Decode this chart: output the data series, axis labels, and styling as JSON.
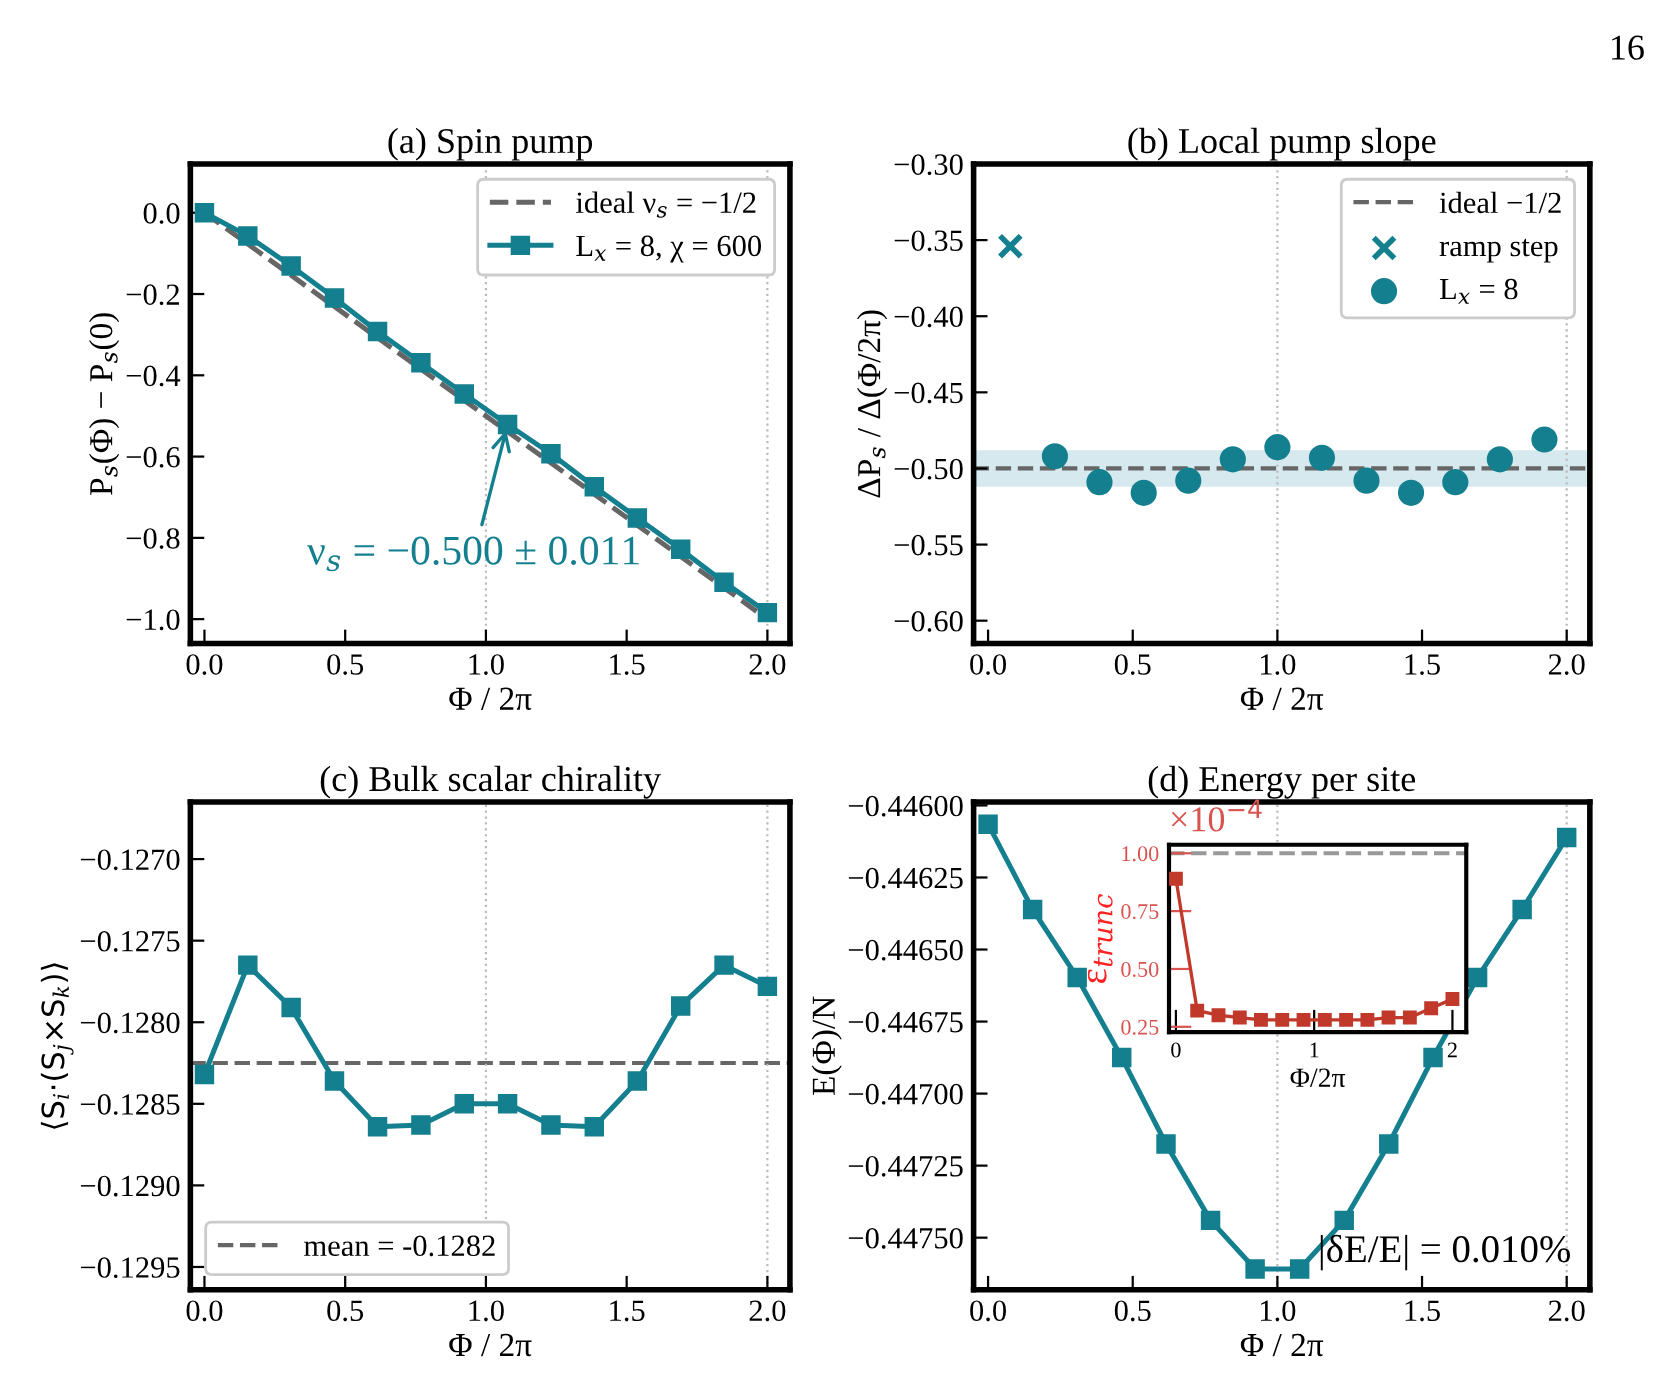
{
  "chart_data": [
    {
      "type": "line",
      "title": "(a) Spin pump",
      "xlabel": "Φ / 2π",
      "ylabel": "P$_{s}$(Φ) − P$_{s}$(0)",
      "x": [
        0,
        0.154,
        0.308,
        0.462,
        0.615,
        0.769,
        0.923,
        1.077,
        1.231,
        1.385,
        1.538,
        1.692,
        1.846,
        2.0
      ],
      "series": [
        {
          "name": "ideal ν$_{s}$ = −1/2",
          "color": "#666666",
          "x": [
            0,
            2.0
          ],
          "values": [
            0,
            -1.0
          ],
          "line_style": "dashed",
          "marker": "none"
        },
        {
          "name": "L$_{x}$ = 8, χ = 600",
          "color": "#137f8f",
          "values": [
            0,
            -0.057,
            -0.131,
            -0.21,
            -0.292,
            -0.369,
            -0.446,
            -0.521,
            -0.593,
            -0.674,
            -0.751,
            -0.828,
            -0.909,
            -0.984
          ],
          "marker": "square",
          "line_style": "solid"
        }
      ],
      "xlim": [
        -0.05,
        2.08
      ],
      "ylim": [
        -1.06,
        0.12
      ],
      "xticks": [
        {
          "value": 0,
          "label": "0.0"
        },
        0.5,
        {
          "value": 1,
          "label": "1.0"
        },
        1.5,
        {
          "value": 2,
          "label": "2.0"
        }
      ],
      "yticks": [
        {
          "value": -1.0,
          "label": "−1.0"
        },
        {
          "value": -0.8,
          "label": "−0.8"
        },
        {
          "value": -0.6,
          "label": "−0.6"
        },
        {
          "value": -0.4,
          "label": "−0.4"
        },
        {
          "value": -0.2,
          "label": "−0.2"
        },
        {
          "value": 0,
          "label": "0.0"
        }
      ],
      "ref_lines": [
        {
          "axis": "x",
          "value": 1.0,
          "color": "#bbbbbb",
          "line_style": "dotted"
        },
        {
          "axis": "x",
          "value": 2.0,
          "color": "#bbbbbb",
          "line_style": "dotted"
        }
      ],
      "annotations": [
        {
          "text": "ν$_{s}$ = −0.500 ± 0.011",
          "x": 1.077,
          "y": -0.521
        },
        "16"
      ],
      "legend": "top right",
      "grid": false
    },
    {
      "type": "scatter",
      "title": "(b) Local pump slope",
      "xlabel": "Φ / 2π",
      "ylabel": "ΔP$_{s}$ / Δ(Φ/2π)",
      "series": [
        {
          "name": "ramp step",
          "color": "#137f8f",
          "x": [
            0.077
          ],
          "values": [
            -0.354
          ],
          "marker": "cross"
        },
        {
          "name": "L$_{x}$ = 8",
          "color": "#137f8f",
          "x": [
            0.231,
            0.385,
            0.538,
            0.692,
            0.846,
            1.0,
            1.154,
            1.308,
            1.462,
            1.615,
            1.769,
            1.923
          ],
          "values": [
            -0.492,
            -0.509,
            -0.516,
            -0.508,
            -0.494,
            -0.486,
            -0.493,
            -0.508,
            -0.516,
            -0.509,
            -0.494,
            -0.481
          ],
          "marker": "circle"
        }
      ],
      "xlim": [
        -0.05,
        2.08
      ],
      "ylim": [
        -0.615,
        -0.3
      ],
      "xticks": [
        {
          "value": 0,
          "label": "0.0"
        },
        0.5,
        {
          "value": 1,
          "label": "1.0"
        },
        1.5,
        {
          "value": 2,
          "label": "2.0"
        }
      ],
      "yticks": [
        {
          "value": -0.6,
          "label": "−0.60"
        },
        {
          "value": -0.55,
          "label": "−0.55"
        },
        {
          "value": -0.5,
          "label": "−0.50"
        },
        {
          "value": -0.45,
          "label": "−0.45"
        },
        {
          "value": -0.4,
          "label": "−0.40"
        },
        {
          "value": -0.35,
          "label": "−0.35"
        },
        {
          "value": -0.3,
          "label": "−0.30"
        }
      ],
      "ref_lines": [
        {
          "axis": "y",
          "value": -0.5,
          "label": "ideal −1/2",
          "color": "#666666",
          "line_style": "dashed"
        },
        {
          "axis": "x",
          "value": 1.0,
          "color": "#bbbbbb",
          "line_style": "dotted"
        },
        {
          "axis": "x",
          "value": 2.0,
          "color": "#bbbbbb",
          "line_style": "dotted"
        }
      ],
      "bands": [
        {
          "axis": "y",
          "from": -0.512,
          "to": -0.488,
          "color": "#d6e9ee"
        }
      ],
      "legend": "top right",
      "grid": false
    },
    {
      "type": "line",
      "title": "(c) Bulk scalar chirality",
      "xlabel": "Φ / 2π",
      "ylabel": "⟨S$_{i}$·(S$_{j}$×S$_{k}$)⟩",
      "x": [
        0,
        0.154,
        0.308,
        0.462,
        0.615,
        0.769,
        0.923,
        1.077,
        1.231,
        1.385,
        1.538,
        1.692,
        1.846,
        2.0
      ],
      "series": [
        {
          "color": "#137f8f",
          "values": [
            -0.12832,
            -0.12765,
            -0.12791,
            -0.12836,
            -0.12864,
            -0.12863,
            -0.1285,
            -0.1285,
            -0.12863,
            -0.12864,
            -0.12836,
            -0.1279,
            -0.12765,
            -0.12778
          ],
          "marker": "square",
          "line_style": "solid"
        }
      ],
      "xlim": [
        -0.05,
        2.08
      ],
      "ylim": [
        -0.12964,
        -0.12665
      ],
      "xticks": [
        {
          "value": 0,
          "label": "0.0"
        },
        0.5,
        {
          "value": 1,
          "label": "1.0"
        },
        1.5,
        {
          "value": 2,
          "label": "2.0"
        }
      ],
      "yticks": [
        {
          "value": -0.1295,
          "label": "−0.1295"
        },
        {
          "value": -0.129,
          "label": "−0.1290"
        },
        {
          "value": -0.1285,
          "label": "−0.1285"
        },
        {
          "value": -0.128,
          "label": "−0.1280"
        },
        {
          "value": -0.1275,
          "label": "−0.1275"
        },
        {
          "value": -0.127,
          "label": "−0.1270"
        }
      ],
      "ref_lines": [
        {
          "axis": "y",
          "value": -0.12825,
          "label": "mean = -0.1282",
          "color": "#666666",
          "line_style": "dashed"
        },
        {
          "axis": "x",
          "value": 1.0,
          "color": "#bbbbbb",
          "line_style": "dotted"
        },
        {
          "axis": "x",
          "value": 2.0,
          "color": "#bbbbbb",
          "line_style": "dotted"
        }
      ],
      "legend": "bottom left",
      "grid": false
    },
    {
      "type": "line",
      "title": "(d) Energy per site",
      "xlabel": "Φ / 2π",
      "ylabel": "E(Φ)/N",
      "x": [
        0,
        0.154,
        0.308,
        0.462,
        0.615,
        0.769,
        0.923,
        1.077,
        1.231,
        1.385,
        1.538,
        1.692,
        1.846,
        2.0
      ],
      "series": [
        {
          "color": "#137f8f",
          "values": [
            -0.446065,
            -0.446361,
            -0.446597,
            -0.446875,
            -0.447175,
            -0.44744,
            -0.447609,
            -0.447609,
            -0.44744,
            -0.447175,
            -0.446875,
            -0.446597,
            -0.446361,
            -0.446111
          ],
          "marker": "square",
          "line_style": "solid"
        }
      ],
      "xlim": [
        -0.05,
        2.08
      ],
      "ylim": [
        -0.447681,
        -0.445988
      ],
      "xticks": [
        {
          "value": 0,
          "label": "0.0"
        },
        0.5,
        {
          "value": 1,
          "label": "1.0"
        },
        1.5,
        {
          "value": 2,
          "label": "2.0"
        }
      ],
      "yticks": [
        {
          "value": -0.4475,
          "label": "−0.44750"
        },
        {
          "value": -0.44725,
          "label": "−0.44725"
        },
        {
          "value": -0.447,
          "label": "−0.44700"
        },
        {
          "value": -0.44675,
          "label": "−0.44675"
        },
        {
          "value": -0.4465,
          "label": "−0.44650"
        },
        {
          "value": -0.44625,
          "label": "−0.44625"
        },
        {
          "value": -0.446,
          "label": "−0.44600"
        }
      ],
      "ref_lines": [
        {
          "axis": "x",
          "value": 1.0,
          "color": "#bbbbbb",
          "line_style": "dotted"
        },
        {
          "axis": "x",
          "value": 2.0,
          "color": "#bbbbbb",
          "line_style": "dotted"
        }
      ],
      "annotations": [
        "|δE/E| = 0.010%"
      ],
      "legend": false,
      "grid": false
    },
    {
      "type": "line",
      "xlabel": "Φ/2π",
      "ylabel": "ε$_{trunc}$",
      "x": [
        0,
        0.154,
        0.308,
        0.462,
        0.615,
        0.769,
        0.923,
        1.077,
        1.231,
        1.385,
        1.538,
        1.692,
        1.846,
        2.0
      ],
      "series": [
        {
          "color": "#c0392b",
          "values": [
            0.89,
            0.32,
            0.3,
            0.29,
            0.28,
            0.28,
            0.28,
            0.28,
            0.28,
            0.28,
            0.29,
            0.29,
            0.33,
            0.37
          ],
          "marker": "square",
          "line_style": "solid"
        }
      ],
      "xlim": [
        -0.05,
        2.1
      ],
      "ylim": [
        0.227,
        1.037
      ],
      "xticks": [
        0,
        1,
        2
      ],
      "yticks": [
        0.25,
        {
          "value": 0.5,
          "label": "0.50"
        },
        0.75,
        {
          "value": 1.0,
          "label": "1.00"
        }
      ],
      "ref_lines": [
        {
          "axis": "y",
          "value": 1.0,
          "color": "#999999",
          "line_style": "dashed"
        }
      ],
      "annotations": [
        "×10$^{−4}$"
      ],
      "legend": false,
      "grid": false
    }
  ]
}
